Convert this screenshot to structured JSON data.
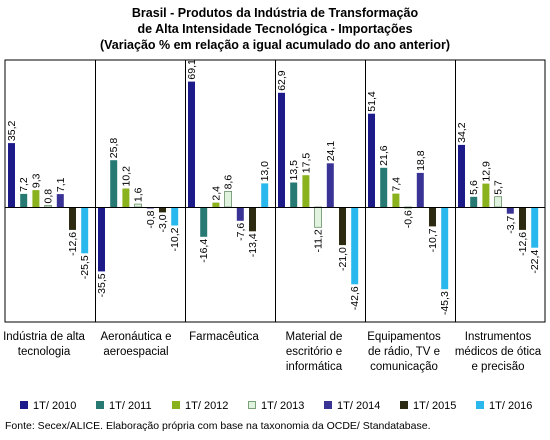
{
  "chart_data": {
    "type": "bar",
    "title_lines": [
      "Brasil - Produtos da Indústria de Transformação",
      "de Alta Intensidade Tecnológica - Importações",
      "(Variação % em relação a igual acumulado do ano anterior)"
    ],
    "categories": [
      "Indústria de alta tecnologia",
      "Aeronáutica e aeroespacial",
      "Farmacêutica",
      "Material de escritório e informática",
      "Equipamentos de rádio, TV e comunicação",
      "Instrumentos médicos de ótica e precisão"
    ],
    "value_labels": [
      [
        "35,2",
        "7,2",
        "9,3",
        "0,8",
        "7,1",
        "-12,6",
        "-25,5"
      ],
      [
        "-35,5",
        "25,8",
        "10,2",
        "1,6",
        "-0,8",
        "-3,0",
        "-10,2"
      ],
      [
        "69,1",
        "-16,4",
        "2,4",
        "8,6",
        "-7,6",
        "-13,4",
        "13,0"
      ],
      [
        "62,9",
        "13,5",
        "17,5",
        "-11,2",
        "24,1",
        "-21,0",
        "-42,6"
      ],
      [
        "51,4",
        "21,6",
        "7,4",
        "-0,6",
        "18,8",
        "-10,7",
        "-45,3"
      ],
      [
        "34,2",
        "5,6",
        "12,9",
        "5,7",
        "-3,7",
        "-12,6",
        "-22,4"
      ]
    ],
    "series": [
      {
        "name": "1T/ 2010",
        "color": "#1d1a8a",
        "values": [
          35.2,
          -35.5,
          69.1,
          62.9,
          51.4,
          34.2
        ]
      },
      {
        "name": "1T/ 2011",
        "color": "#277a74",
        "values": [
          7.2,
          25.8,
          -16.4,
          13.5,
          21.6,
          5.6
        ]
      },
      {
        "name": "1T/ 2012",
        "color": "#8ab21c",
        "values": [
          9.3,
          10.2,
          2.4,
          17.5,
          7.4,
          12.9
        ]
      },
      {
        "name": "1T/ 2013",
        "color": "#dff3df",
        "values": [
          0.8,
          1.6,
          8.6,
          -11.2,
          -0.6,
          5.7
        ]
      },
      {
        "name": "1T/ 2014",
        "color": "#3a3396",
        "values": [
          7.1,
          -0.8,
          -7.6,
          24.1,
          18.8,
          -3.7
        ]
      },
      {
        "name": "1T/ 2015",
        "color": "#2c2a10",
        "values": [
          -12.6,
          -3.0,
          -13.4,
          -21.0,
          -10.7,
          -12.6
        ]
      },
      {
        "name": "1T/ 2016",
        "color": "#29b8ee",
        "values": [
          -25.5,
          -10.2,
          13.0,
          -42.6,
          -45.3,
          -22.4
        ]
      }
    ],
    "ylim": [
      -50,
      75
    ],
    "grid": false,
    "legend_position": "bottom"
  },
  "source": "Fonte: Secex/ALICE. Elaboração própria com base na taxonomia da OCDE/ Standatabase."
}
